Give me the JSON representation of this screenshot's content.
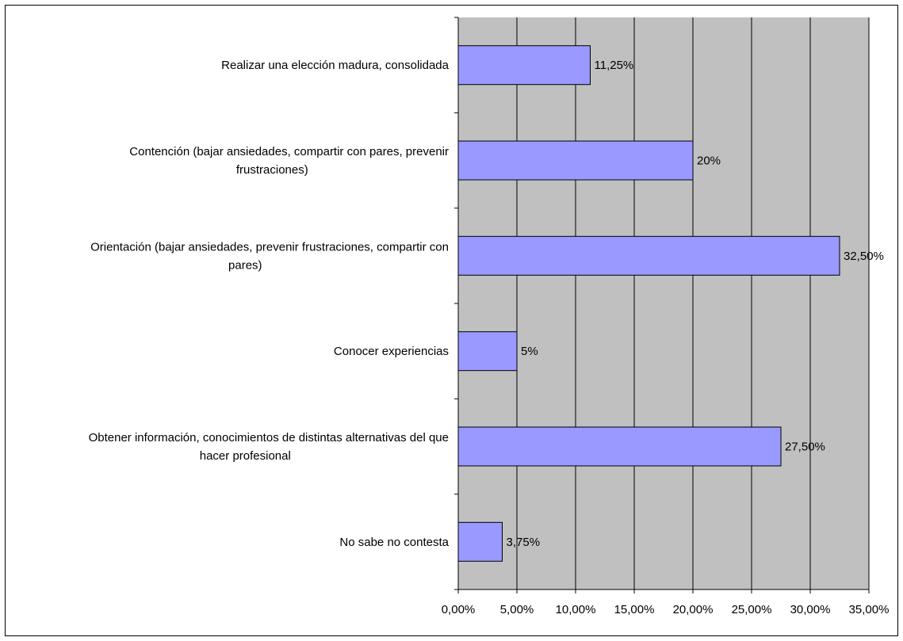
{
  "chart_data": {
    "type": "bar",
    "orientation": "horizontal",
    "title": "",
    "xlabel": "",
    "ylabel": "",
    "categories": [
      "Realizar una elección madura, consolidada",
      "Contención (bajar ansiedades, compartir con pares, prevenir frustraciones)",
      "Orientación (bajar ansiedades, prevenir frustraciones, compartir con pares)",
      "Conocer experiencias",
      "Obtener información, conocimientos de distintas alternativas del que hacer profesional",
      "No sabe no contesta"
    ],
    "category_lines": [
      [
        "Realizar una elección madura, consolidada"
      ],
      [
        "Contención (bajar ansiedades, compartir con pares, prevenir",
        "frustraciones)"
      ],
      [
        "Orientación (bajar ansiedades, prevenir frustraciones, compartir con",
        "pares)"
      ],
      [
        "Conocer experiencias"
      ],
      [
        "Obtener información, conocimientos de distintas alternativas del que",
        "hacer profesional"
      ],
      [
        "No sabe no contesta"
      ]
    ],
    "values": [
      11.25,
      20,
      32.5,
      5,
      27.5,
      3.75
    ],
    "data_labels": [
      "11,25%",
      "20%",
      "32,50%",
      "5%",
      "27,50%",
      "3,75%"
    ],
    "x_ticks": [
      0,
      5,
      10,
      15,
      20,
      25,
      30,
      35
    ],
    "x_tick_labels": [
      "0,00%",
      "5,00%",
      "10,00%",
      "15,00%",
      "20,00%",
      "25,00%",
      "30,00%",
      "35,00%"
    ],
    "xlim": [
      0,
      35
    ],
    "grid": true,
    "legend": "none",
    "colors": {
      "plot_background": "#c0c0c0",
      "bar_fill": "#9999ff",
      "bar_stroke": "#000000",
      "grid": "#000000"
    }
  }
}
